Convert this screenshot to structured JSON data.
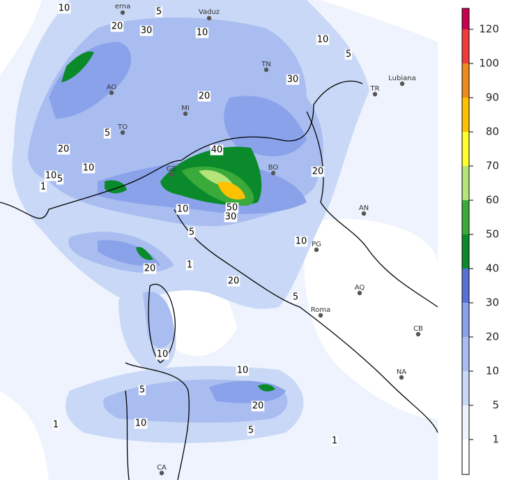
{
  "map": {
    "cities": [
      "erna",
      "Vaduz",
      "TN",
      "Lubiana",
      "TR",
      "AO",
      "MI",
      "TO",
      "GE",
      "BO",
      "AN",
      "PG",
      "AQ",
      "Roma",
      "CB",
      "NA",
      "CA"
    ],
    "contour_labels": [
      10,
      5,
      20,
      30,
      10,
      10,
      5,
      30,
      20,
      5,
      20,
      40,
      10,
      10,
      5,
      20,
      1,
      10,
      50,
      30,
      5,
      10,
      20,
      1,
      20,
      5,
      10,
      10,
      5,
      20,
      10,
      1,
      5,
      1
    ],
    "colorbar": {
      "ticks": [
        1,
        5,
        10,
        20,
        30,
        40,
        50,
        60,
        70,
        80,
        90,
        100,
        120
      ],
      "colors": [
        "#ffffff",
        "#eef3fd",
        "#c9d8f6",
        "#a9bdf0",
        "#8aa2ea",
        "#5a6fd8",
        "#0a8a2a",
        "#3aaa3a",
        "#b5e57a",
        "#ffff30",
        "#ffc000",
        "#f08a1e",
        "#ee3c3c",
        "#c80050"
      ]
    }
  }
}
